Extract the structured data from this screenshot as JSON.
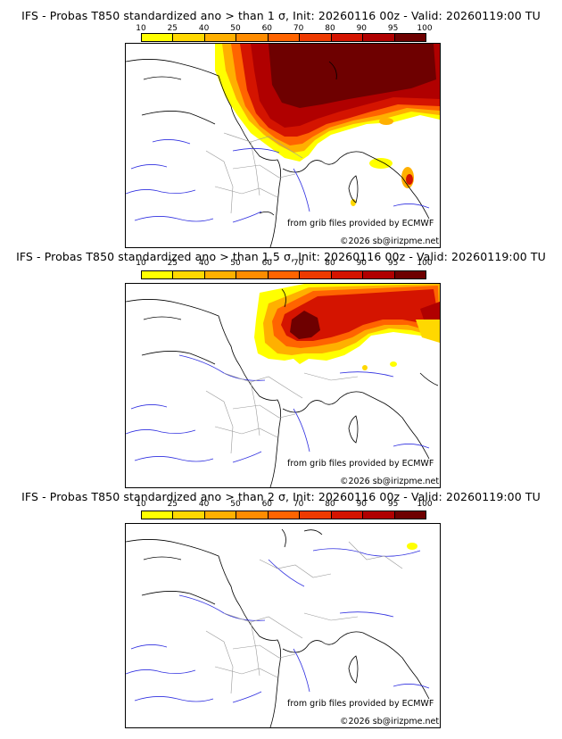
{
  "colorbar": {
    "ticks": [
      "10",
      "25",
      "40",
      "50",
      "60",
      "70",
      "80",
      "90",
      "95",
      "100"
    ],
    "colors": [
      "#ffff00",
      "#ffd800",
      "#ffb000",
      "#ff8c00",
      "#ff6400",
      "#ee3a00",
      "#d41400",
      "#b00000",
      "#6e0000"
    ]
  },
  "panels": [
    {
      "title": "IFS - Probas T850  standardized ano > than 1 σ, Init: 20260116 00z - Valid: 20260119:00 TU",
      "credit_source": "from grib files provided by ECMWF",
      "credit_copyright": "©2026 sb@irizpme.net",
      "probability_level": "high"
    },
    {
      "title": "IFS - Probas T850  standardized ano > than 1.5 σ, Init: 20260116 00z - Valid: 20260119:00 TU",
      "credit_source": "from grib files provided by ECMWF",
      "credit_copyright": "©2026 sb@irizpme.net",
      "probability_level": "medium"
    },
    {
      "title": "IFS - Probas T850  standardized ano > than 2 σ, Init: 20260116 00z - Valid: 20260119:00 TU",
      "credit_source": "from grib files provided by ECMWF",
      "credit_copyright": "©2026 sb@irizpme.net",
      "probability_level": "low"
    }
  ]
}
